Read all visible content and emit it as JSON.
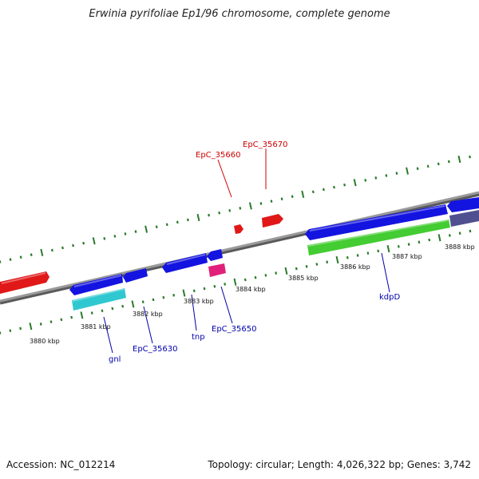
{
  "title": "Erwinia pyrifoliae Ep1/96 chromosome, complete genome",
  "footer": {
    "accession": "Accession: NC_012214",
    "summary": "Topology: circular; Length: 4,026,322 bp; Genes: 3,742"
  },
  "colors": {
    "backbone": "#808080",
    "tick": "#2a7a2a",
    "forward_gene": "#e01818",
    "reverse_gene": "#1414e0",
    "rna_gene": "#30c8d0",
    "cds_green": "#44cc33",
    "misc_pink": "#e0207a",
    "slate": "#505090",
    "label_red": "#cc0000",
    "label_blue": "#0000aa"
  },
  "scale_labels": [
    "3880 kbp",
    "3881 kbp",
    "3882 kbp",
    "3883 kbp",
    "3884 kbp",
    "3885 kbp",
    "3886 kbp",
    "3887 kbp",
    "3888 kbp"
  ],
  "gene_labels": {
    "forward": [
      "EpC_35660",
      "EpC_35670"
    ],
    "reverse": [
      "gnl",
      "EpC_35630",
      "tnp",
      "EpC_35650",
      "kdpD"
    ]
  }
}
